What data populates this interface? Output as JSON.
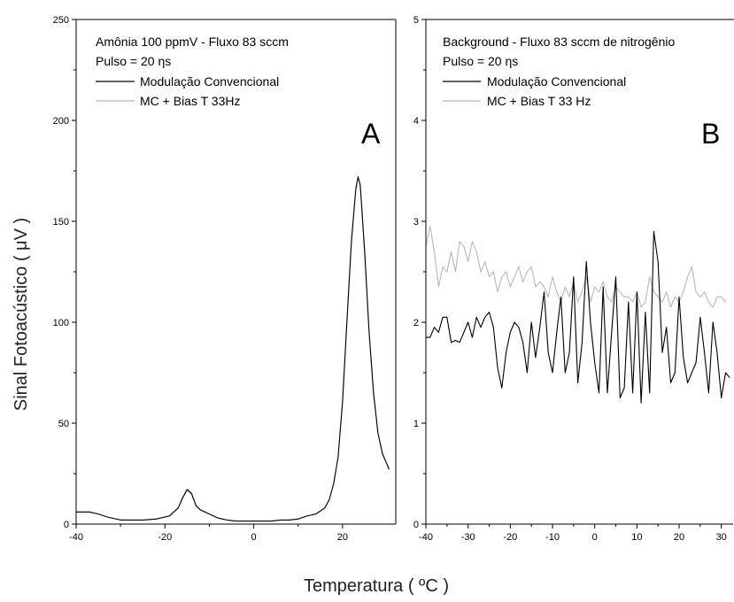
{
  "xlabel": "Temperatura ( ºC )",
  "ylabel": "Sinal Fotoacústico ( μV )",
  "chart_data": [
    {
      "type": "line",
      "panel_letter": "A",
      "annotation_lines": [
        "Amônia 100 ppmV  - Fluxo 83 sccm",
        "Pulso = 20 ηs"
      ],
      "xlim": [
        -40,
        32
      ],
      "ylim": [
        0,
        250
      ],
      "xticks": [
        -40,
        -20,
        0,
        20
      ],
      "yticks": [
        0,
        50,
        100,
        150,
        200,
        250
      ],
      "legend_position": "top-left",
      "series": [
        {
          "name": "Modulação Convencional",
          "color": "#000000",
          "x": [
            -40,
            -37,
            -35,
            -33,
            -30,
            -28,
            -25,
            -22,
            -19,
            -17,
            -16,
            -15,
            -14,
            -13,
            -12,
            -10,
            -8,
            -6,
            -4,
            -2,
            0,
            2,
            4,
            6,
            8,
            10,
            12,
            14,
            16,
            17,
            18,
            19,
            20,
            21,
            22,
            23,
            23.5,
            24,
            25,
            26,
            27,
            28,
            29,
            30.5
          ],
          "y": [
            6,
            6,
            5,
            3.5,
            2,
            2,
            2,
            2.5,
            4,
            8,
            13,
            17,
            15,
            9,
            7,
            5,
            3,
            2,
            1.5,
            1.5,
            1.5,
            1.5,
            1.5,
            2,
            2,
            2.5,
            4,
            5,
            8,
            12,
            20,
            33,
            60,
            100,
            140,
            166,
            172,
            168,
            135,
            95,
            65,
            45,
            35,
            27
          ]
        },
        {
          "name": "MC + Bias T 33Hz",
          "color": "#b8b8b8",
          "x": [
            -40,
            -37,
            -35,
            -33,
            -30,
            -28,
            -25,
            -22,
            -19,
            -17,
            -16,
            -15,
            -14,
            -13,
            -12,
            -10,
            -8,
            -6,
            -4,
            -2,
            0,
            2,
            4,
            6,
            8,
            10,
            12,
            14,
            16,
            17,
            18,
            19,
            20,
            21,
            22,
            23,
            23.5,
            24,
            25,
            26,
            27,
            28,
            29,
            30.5
          ],
          "y": [
            6,
            6,
            5,
            3.5,
            2.2,
            2,
            2,
            2.6,
            4.2,
            8.2,
            13.5,
            17.5,
            15.5,
            9.5,
            7.2,
            5,
            3,
            2,
            1.5,
            1.5,
            1.5,
            1.5,
            1.6,
            2,
            2.1,
            2.6,
            4,
            5.2,
            8,
            12,
            20,
            33,
            61,
            101,
            141,
            167,
            172,
            167,
            133,
            94,
            64,
            45,
            34,
            28
          ]
        }
      ]
    },
    {
      "type": "line",
      "panel_letter": "B",
      "annotation_lines": [
        "Background - Fluxo 83 sccm de nitrogênio",
        "Pulso = 20 ηs"
      ],
      "xlim": [
        -40,
        33
      ],
      "ylim": [
        0,
        5
      ],
      "xticks": [
        -40,
        -30,
        -20,
        -10,
        0,
        10,
        20,
        30
      ],
      "yticks": [
        0,
        1,
        2,
        3,
        4,
        5
      ],
      "legend_position": "top-left",
      "series": [
        {
          "name": "Modulação Convencional",
          "color": "#000000",
          "x": [
            -40,
            -39,
            -38,
            -37,
            -36,
            -35,
            -34,
            -33,
            -32,
            -31,
            -30,
            -29,
            -28,
            -27,
            -26,
            -25,
            -24,
            -23,
            -22,
            -21,
            -20,
            -19,
            -18,
            -17,
            -16,
            -15,
            -14,
            -13,
            -12,
            -11,
            -10,
            -9,
            -8,
            -7,
            -6,
            -5,
            -4,
            -3,
            -2,
            -1,
            0,
            1,
            2,
            3,
            4,
            5,
            6,
            7,
            8,
            9,
            10,
            11,
            12,
            13,
            14,
            15,
            16,
            17,
            18,
            19,
            20,
            21,
            22,
            23,
            24,
            25,
            26,
            27,
            28,
            29,
            30,
            31,
            32
          ],
          "y": [
            1.85,
            1.85,
            1.95,
            1.9,
            2.05,
            2.05,
            1.8,
            1.82,
            1.8,
            1.9,
            2.0,
            1.85,
            2.05,
            1.95,
            2.05,
            2.1,
            1.95,
            1.55,
            1.35,
            1.7,
            1.9,
            2.0,
            1.95,
            1.8,
            1.5,
            2.0,
            1.65,
            1.95,
            2.3,
            1.7,
            1.5,
            1.9,
            2.25,
            1.5,
            1.7,
            2.45,
            1.4,
            1.8,
            2.6,
            2.0,
            1.6,
            1.3,
            2.35,
            1.3,
            1.9,
            2.45,
            1.25,
            1.35,
            2.2,
            1.3,
            2.3,
            1.2,
            2.1,
            1.3,
            2.9,
            2.6,
            1.7,
            1.95,
            1.4,
            1.5,
            2.25,
            1.65,
            1.4,
            1.5,
            1.6,
            2.05,
            1.7,
            1.3,
            2.0,
            1.7,
            1.25,
            1.5,
            1.45
          ]
        },
        {
          "name": "MC + Bias T 33 Hz",
          "color": "#b8b8b8",
          "x": [
            -40,
            -39,
            -38,
            -37,
            -36,
            -35,
            -34,
            -33,
            -32,
            -31,
            -30,
            -29,
            -28,
            -27,
            -26,
            -25,
            -24,
            -23,
            -22,
            -21,
            -20,
            -19,
            -18,
            -17,
            -16,
            -15,
            -14,
            -13,
            -12,
            -11,
            -10,
            -9,
            -8,
            -7,
            -6,
            -5,
            -4,
            -3,
            -2,
            -1,
            0,
            1,
            2,
            3,
            4,
            5,
            6,
            7,
            8,
            9,
            10,
            11,
            12,
            13,
            14,
            15,
            16,
            17,
            18,
            19,
            20,
            21,
            22,
            23,
            24,
            25,
            26,
            27,
            28,
            29,
            30,
            31
          ],
          "y": [
            2.75,
            2.95,
            2.7,
            2.35,
            2.55,
            2.5,
            2.7,
            2.5,
            2.8,
            2.75,
            2.6,
            2.8,
            2.7,
            2.5,
            2.6,
            2.45,
            2.5,
            2.3,
            2.45,
            2.5,
            2.35,
            2.45,
            2.55,
            2.4,
            2.5,
            2.55,
            2.35,
            2.4,
            2.35,
            2.25,
            2.45,
            2.3,
            2.2,
            2.35,
            2.25,
            2.4,
            2.2,
            2.3,
            2.45,
            2.2,
            2.35,
            2.3,
            2.4,
            2.25,
            2.2,
            2.35,
            2.3,
            2.25,
            2.25,
            2.2,
            2.3,
            2.15,
            2.2,
            2.45,
            2.3,
            2.25,
            2.2,
            2.3,
            2.15,
            2.25,
            2.2,
            2.3,
            2.45,
            2.55,
            2.3,
            2.25,
            2.3,
            2.2,
            2.15,
            2.25,
            2.25,
            2.2
          ]
        }
      ]
    }
  ]
}
